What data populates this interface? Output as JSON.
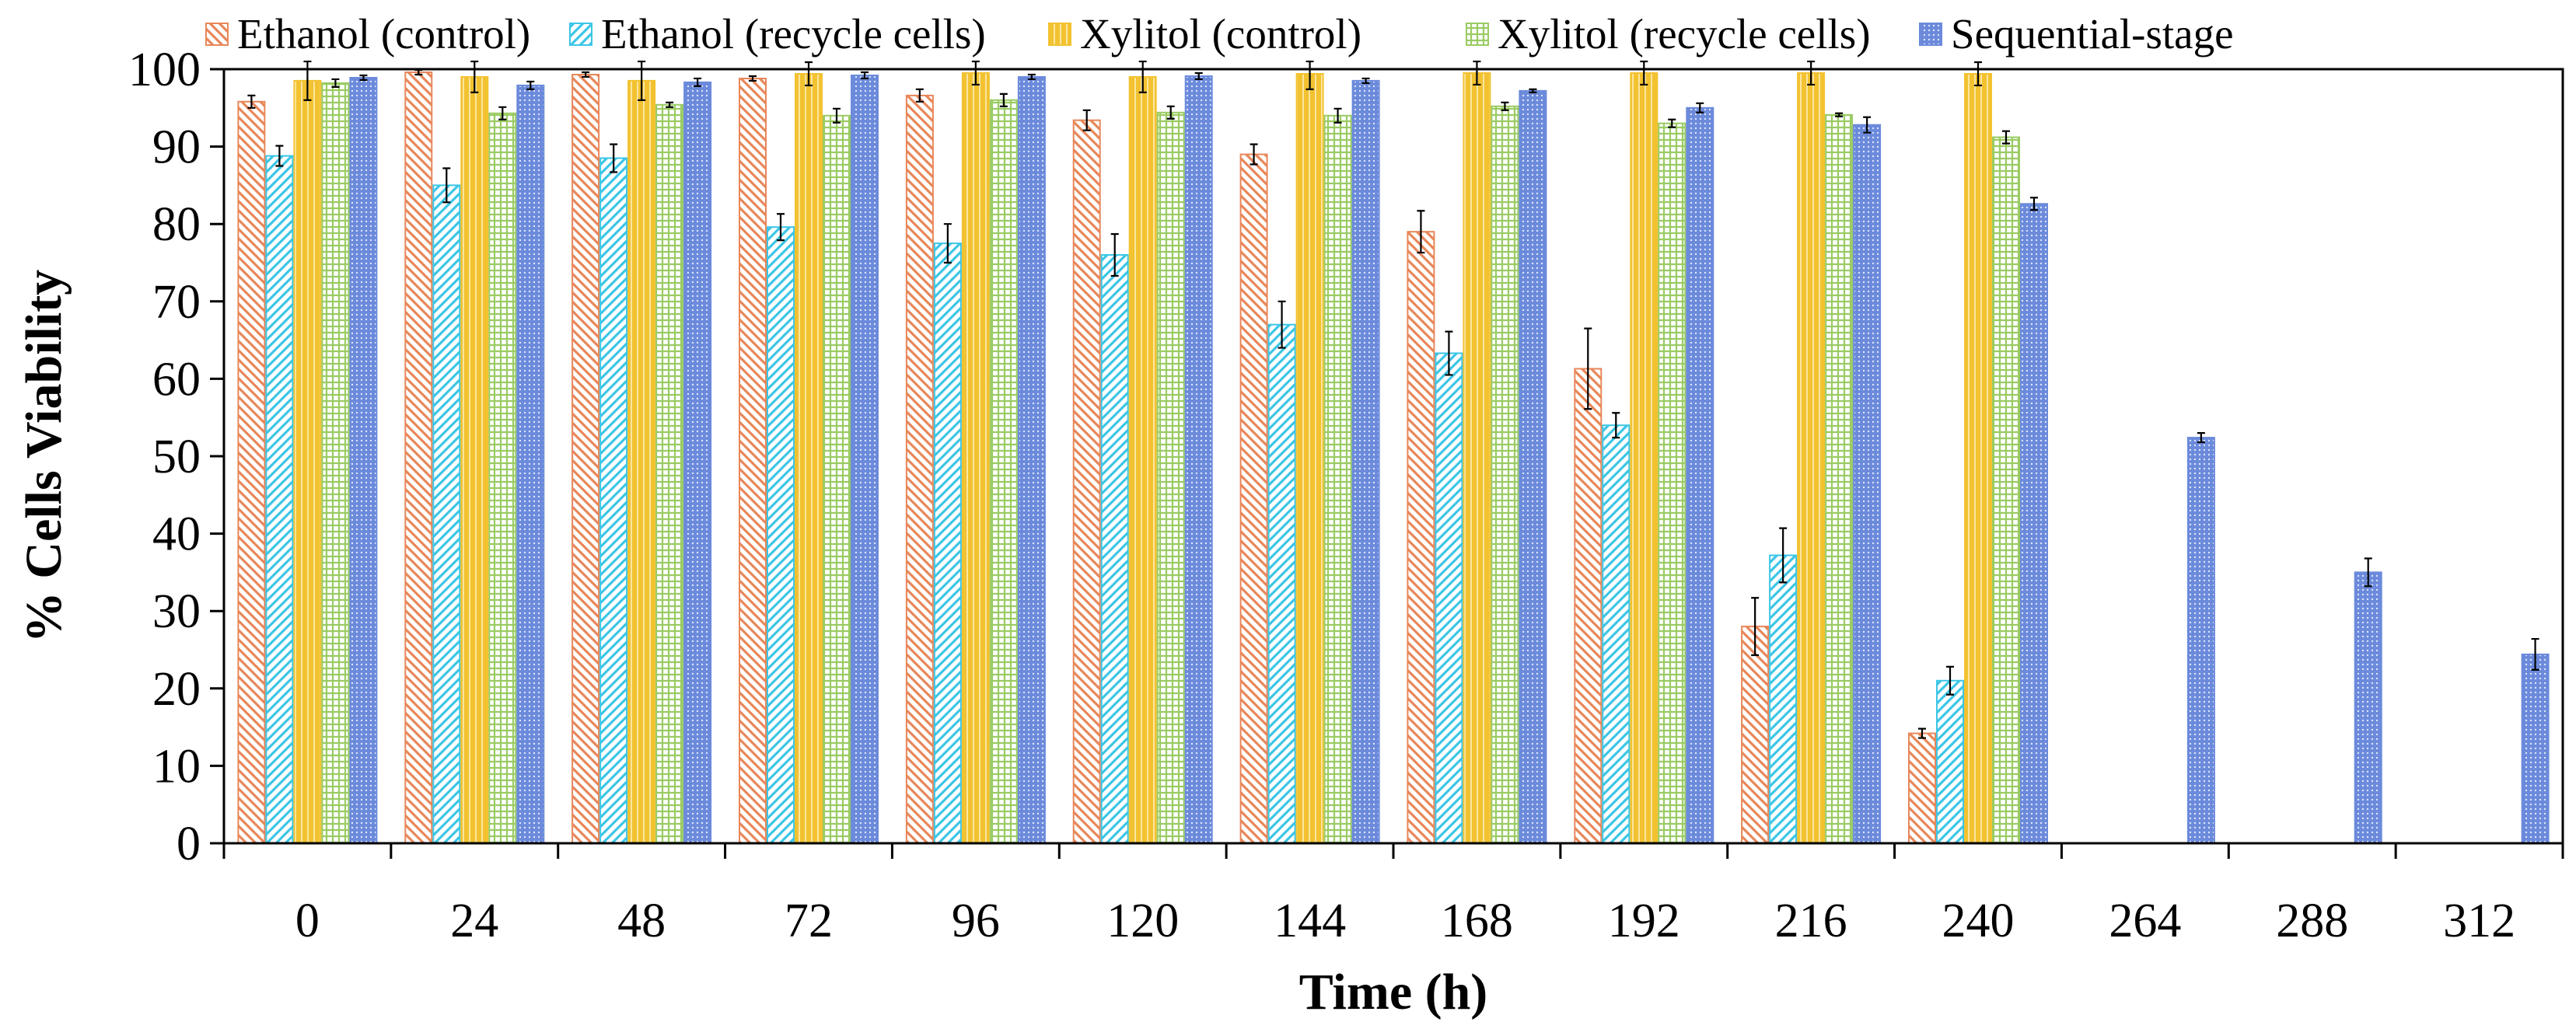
{
  "chart_data": {
    "type": "bar",
    "title": "",
    "xlabel": "Time (h)",
    "ylabel": "% Cells Viability",
    "ylim": [
      0,
      100
    ],
    "yticks": [
      0,
      10,
      20,
      30,
      40,
      50,
      60,
      70,
      80,
      90,
      100
    ],
    "grid": false,
    "legend_position": "top",
    "categories": [
      "0",
      "24",
      "48",
      "72",
      "96",
      "120",
      "144",
      "168",
      "192",
      "216",
      "240",
      "264",
      "288",
      "312"
    ],
    "series": [
      {
        "name": "Ethanol (control)",
        "color": "#E8875A",
        "pattern": "diagonal-down",
        "values": [
          95.8,
          99.6,
          99.3,
          98.8,
          96.6,
          93.4,
          89.0,
          79.0,
          61.3,
          28.0,
          14.2,
          null,
          null,
          null
        ],
        "errors": [
          0.8,
          0.3,
          0.3,
          0.3,
          0.8,
          1.3,
          1.3,
          2.7,
          5.2,
          3.7,
          0.6,
          null,
          null,
          null
        ]
      },
      {
        "name": "Ethanol (recycle cells)",
        "color": "#3CC6E6",
        "pattern": "diagonal-up",
        "values": [
          88.8,
          85.0,
          88.5,
          79.6,
          77.5,
          76.0,
          67.0,
          63.3,
          54.0,
          37.2,
          21.0,
          null,
          null,
          null
        ],
        "errors": [
          1.3,
          2.2,
          1.8,
          1.7,
          2.5,
          2.7,
          3.0,
          2.8,
          1.6,
          3.5,
          1.8,
          null,
          null,
          null
        ]
      },
      {
        "name": "Xylitol (control)",
        "color": "#F2C230",
        "pattern": "vertical",
        "values": [
          98.5,
          99.0,
          98.5,
          99.4,
          99.5,
          99.0,
          99.4,
          99.5,
          99.5,
          99.5,
          99.4,
          null,
          null,
          null
        ],
        "errors": [
          2.5,
          2.0,
          2.5,
          1.5,
          1.5,
          2.0,
          2.0,
          1.5,
          1.5,
          1.5,
          1.5,
          null,
          null,
          null
        ]
      },
      {
        "name": "Xylitol (recycle cells)",
        "color": "#9ACB63",
        "pattern": "crosshatch",
        "values": [
          98.2,
          94.3,
          95.4,
          94.0,
          96.0,
          94.4,
          94.0,
          95.2,
          93.0,
          94.1,
          91.2,
          null,
          null,
          null
        ],
        "errors": [
          0.5,
          0.8,
          0.3,
          0.9,
          0.8,
          0.8,
          0.9,
          0.5,
          0.5,
          0.2,
          0.8,
          null,
          null,
          null
        ]
      },
      {
        "name": "Sequential-stage",
        "color": "#6B8ADB",
        "pattern": "dots",
        "values": [
          98.9,
          97.9,
          98.3,
          99.2,
          99.0,
          99.1,
          98.5,
          97.2,
          95.0,
          92.8,
          82.6,
          52.4,
          35.0,
          24.4
        ],
        "errors": [
          0.3,
          0.5,
          0.5,
          0.4,
          0.3,
          0.4,
          0.3,
          0.2,
          0.6,
          1.0,
          0.8,
          0.6,
          1.8,
          2.0
        ]
      }
    ]
  }
}
